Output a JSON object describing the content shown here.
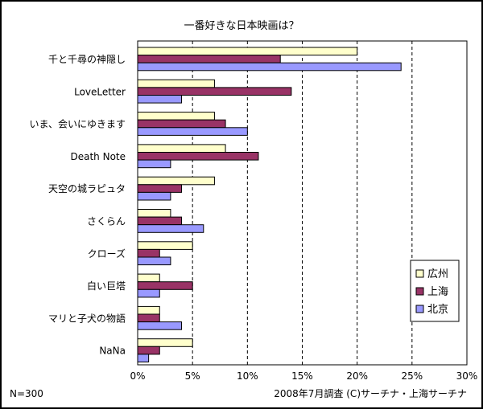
{
  "chart_data": {
    "type": "bar",
    "orientation": "horizontal",
    "title": "一番好きな日本映画は？",
    "categories": [
      "千と千尋の神隠し",
      "LoveLetter",
      "いま、会いにゆきます",
      "Death Note",
      "天空の城ラピュタ",
      "さくらん",
      "クローズ",
      "白い巨塔",
      "マリと子犬の物語",
      "NaNa"
    ],
    "series": [
      {
        "name": "広州",
        "color": "#ffffcc",
        "values": [
          20,
          7,
          7,
          8,
          7,
          3,
          5,
          2,
          2,
          5
        ]
      },
      {
        "name": "上海",
        "color": "#993366",
        "values": [
          13,
          14,
          8,
          11,
          4,
          4,
          2,
          5,
          2,
          2
        ]
      },
      {
        "name": "北京",
        "color": "#9999ff",
        "values": [
          24,
          4,
          10,
          3,
          3,
          6,
          3,
          2,
          4,
          1
        ]
      }
    ],
    "xlim": [
      0,
      30
    ],
    "xticks": [
      0,
      5,
      10,
      15,
      20,
      25,
      30
    ],
    "tick_format": "%",
    "legend_position": "right",
    "grid": "vertical-dashed"
  },
  "footer": {
    "sample_size": "N=300",
    "credit": "2008年7月調査 (C)サーチナ・上海サーチナ"
  }
}
